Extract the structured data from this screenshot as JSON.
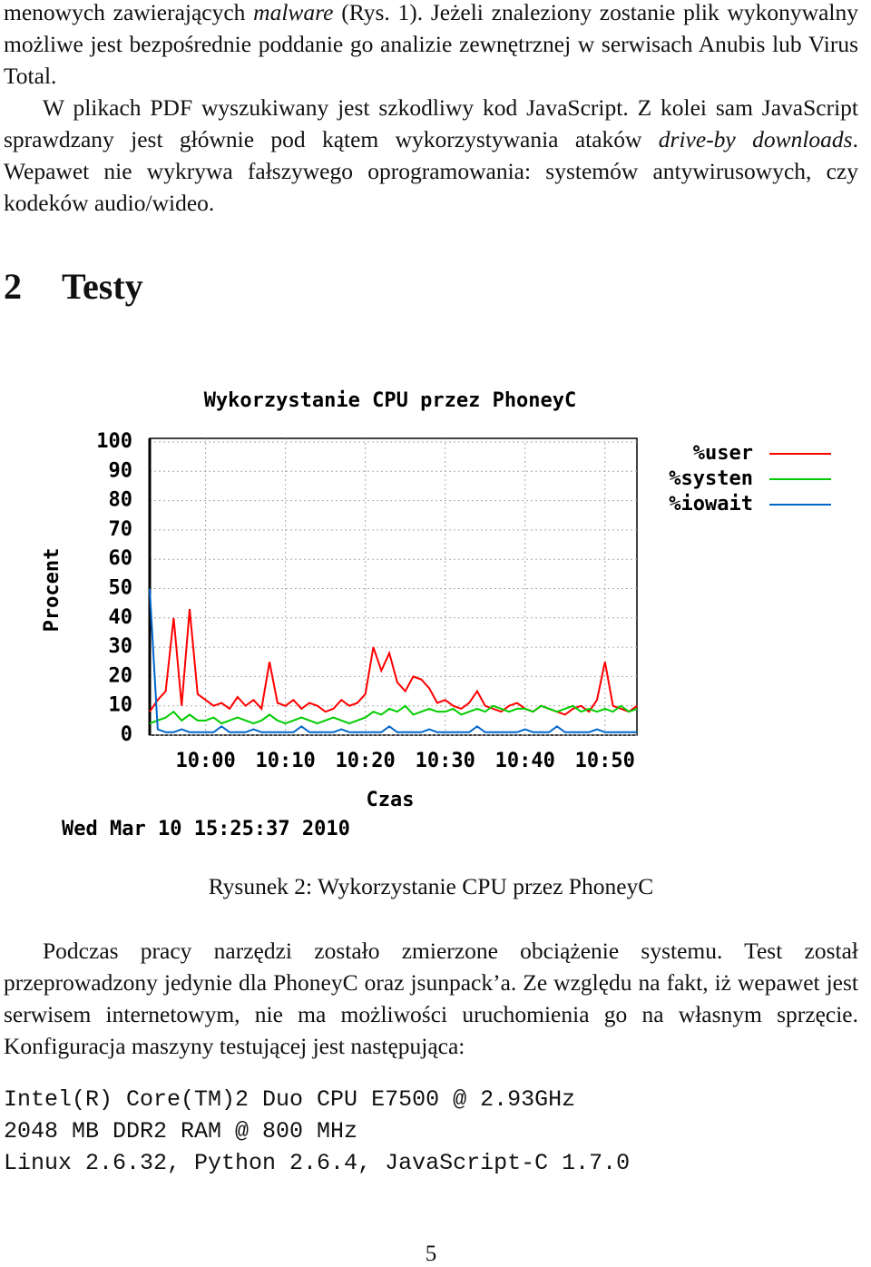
{
  "document": {
    "intro": [
      "menowych zawierających ",
      "malware",
      " (Rys. 1). Jeżeli znaleziony zostanie plik wykonywalny możliwe jest bezpośrednie poddanie go analizie zewnętrznej w serwisach Anubis lub Virus Total."
    ],
    "para2": [
      "W plikach PDF wyszukiwany jest szkodliwy kod JavaScript. Z kolei sam JavaScript sprawdzany jest głównie pod kątem wykorzystywania ataków ",
      "drive-by downloads",
      ". Wepawet nie wykrywa fałszywego oprogramowania: systemów antywirusowych, czy kodeków audio/wideo."
    ],
    "section": {
      "number": "2",
      "title": "Testy"
    },
    "caption": "Rysunek 2: Wykorzystanie CPU przez PhoneyC",
    "para3": "Podczas pracy narzędzi zostało zmierzone obciążenie systemu. Test został przeprowadzony jedynie dla PhoneyC oraz jsunpack’a. Ze względu na fakt, iż wepawet jest serwisem internetowym, nie ma możliwości uruchomienia go na własnym sprzęcie. Konfiguracja maszyny testującej jest następująca:",
    "code": [
      "Intel(R) Core(TM)2 Duo CPU E7500 @ 2.93GHz",
      "2048 MB DDR2 RAM @ 800 MHz",
      "Linux 2.6.32, Python 2.6.4, JavaScript-C 1.7.0"
    ],
    "page_number": "5"
  },
  "chart_data": {
    "type": "line",
    "title": "Wykorzystanie CPU przez PhoneyC",
    "y_label": "Procent",
    "x_label": "Czas",
    "annotation": "Wed Mar 10 15:25:37 2010",
    "x": [
      "09:53",
      "09:54",
      "09:55",
      "09:56",
      "09:57",
      "09:58",
      "09:59",
      "10:00",
      "10:01",
      "10:02",
      "10:03",
      "10:04",
      "10:05",
      "10:06",
      "10:07",
      "10:08",
      "10:09",
      "10:10",
      "10:11",
      "10:12",
      "10:13",
      "10:14",
      "10:15",
      "10:16",
      "10:17",
      "10:18",
      "10:19",
      "10:20",
      "10:21",
      "10:22",
      "10:23",
      "10:24",
      "10:25",
      "10:26",
      "10:27",
      "10:28",
      "10:29",
      "10:30",
      "10:31",
      "10:32",
      "10:33",
      "10:34",
      "10:35",
      "10:36",
      "10:37",
      "10:38",
      "10:39",
      "10:40",
      "10:41",
      "10:42",
      "10:43",
      "10:44",
      "10:45",
      "10:46",
      "10:47",
      "10:48",
      "10:49",
      "10:50",
      "10:51",
      "10:52",
      "10:53",
      "10:54"
    ],
    "series": [
      {
        "name": "%user",
        "color": "#ff0000",
        "values": [
          8,
          12,
          15,
          40,
          10,
          43,
          14,
          12,
          10,
          11,
          9,
          13,
          10,
          12,
          9,
          25,
          11,
          10,
          12,
          9,
          11,
          10,
          8,
          9,
          12,
          10,
          11,
          14,
          30,
          22,
          28,
          18,
          15,
          20,
          19,
          16,
          11,
          12,
          10,
          9,
          11,
          15,
          10,
          9,
          8,
          10,
          11,
          9,
          8,
          10,
          9,
          8,
          7,
          9,
          10,
          8,
          12,
          25,
          10,
          9,
          8,
          10
        ]
      },
      {
        "name": "%systen",
        "color": "#00cc00",
        "values": [
          4,
          5,
          6,
          8,
          5,
          7,
          5,
          5,
          6,
          4,
          5,
          6,
          5,
          4,
          5,
          7,
          5,
          4,
          5,
          6,
          5,
          4,
          5,
          6,
          5,
          4,
          5,
          6,
          8,
          7,
          9,
          8,
          10,
          7,
          8,
          9,
          8,
          8,
          9,
          7,
          8,
          9,
          8,
          10,
          9,
          8,
          9,
          9,
          8,
          10,
          9,
          8,
          9,
          10,
          8,
          9,
          8,
          9,
          8,
          10,
          8,
          9
        ]
      },
      {
        "name": "%iowait",
        "color": "#0066cc",
        "values": [
          50,
          2,
          1,
          1,
          2,
          1,
          1,
          1,
          1,
          3,
          1,
          1,
          1,
          2,
          1,
          1,
          1,
          1,
          1,
          3,
          1,
          1,
          1,
          1,
          2,
          1,
          1,
          1,
          1,
          1,
          3,
          1,
          1,
          1,
          1,
          2,
          1,
          1,
          1,
          1,
          1,
          3,
          1,
          1,
          1,
          1,
          1,
          2,
          1,
          1,
          1,
          3,
          1,
          1,
          1,
          1,
          2,
          1,
          1,
          1,
          1,
          1
        ]
      }
    ],
    "xlim": [
      "09:53",
      "10:54"
    ],
    "xticks": [
      "10:00",
      "10:10",
      "10:20",
      "10:30",
      "10:40",
      "10:50"
    ],
    "ylim": [
      0,
      100
    ],
    "yticks": [
      0,
      10,
      20,
      30,
      40,
      50,
      60,
      70,
      80,
      90,
      100
    ],
    "grid": true,
    "legend": "right"
  }
}
